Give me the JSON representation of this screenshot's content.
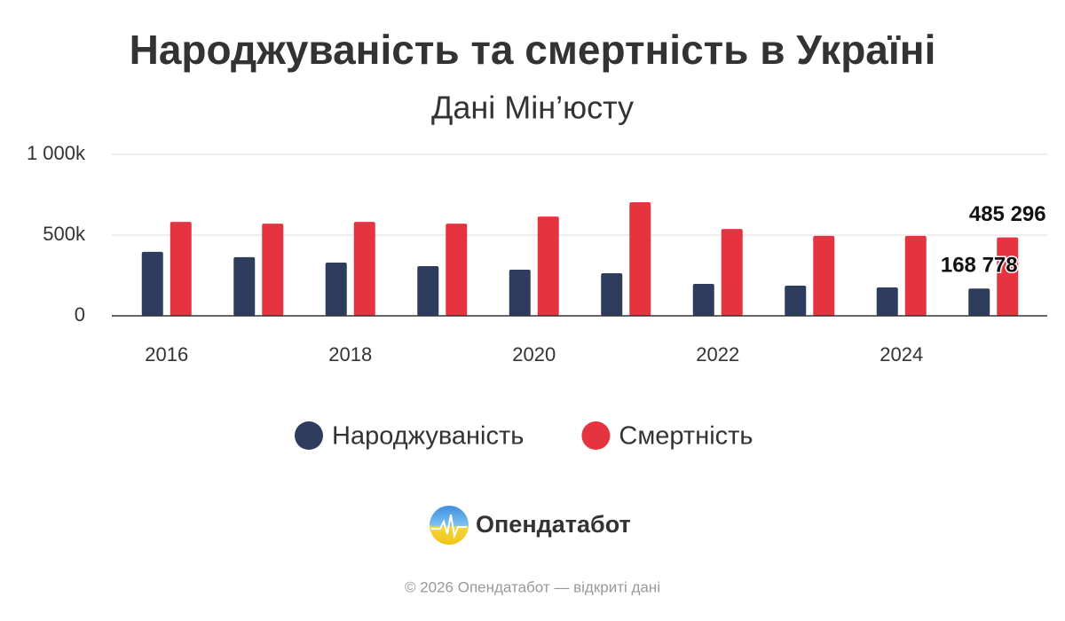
{
  "chart_data": {
    "type": "bar",
    "title": "Народжуваність та смертність в Україні",
    "subtitle": "Дані Мін’юсту",
    "categories": [
      "2016",
      null,
      "2018",
      null,
      "2020",
      null,
      "2022",
      null,
      "2024",
      null
    ],
    "series": [
      {
        "name": "Народжуваність",
        "color": "#2e3c5e",
        "values": [
          396000,
          363000,
          330000,
          308000,
          286000,
          264000,
          198000,
          187000,
          176000,
          168778
        ],
        "value_labels": [
          null,
          null,
          null,
          null,
          null,
          null,
          null,
          null,
          null,
          "168 778"
        ]
      },
      {
        "name": "Смертність",
        "color": "#e53440",
        "values": [
          582000,
          571000,
          582000,
          571000,
          615000,
          703000,
          538000,
          495000,
          495000,
          485296
        ],
        "value_labels": [
          null,
          null,
          null,
          null,
          null,
          null,
          null,
          null,
          null,
          "485 296"
        ]
      }
    ],
    "ylim": [
      0,
      1000000
    ],
    "yticks": [
      0,
      {
        "value": 500000,
        "label": "500k"
      },
      {
        "value": 1000000,
        "label": "1 000k"
      }
    ],
    "grid": true,
    "brand": "Опендатабот",
    "footer": "© 2026 Опендатабот — відкриті дані"
  }
}
